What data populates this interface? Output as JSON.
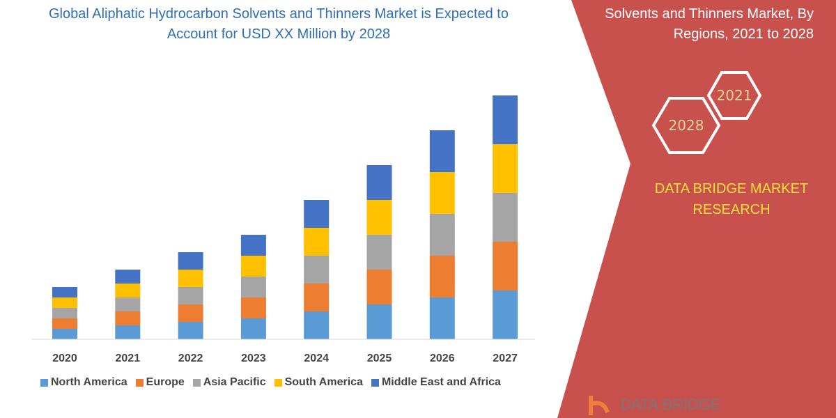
{
  "chart_data": {
    "type": "bar",
    "stacked": true,
    "title": "Global Aliphatic Hydrocarbon Solvents and Thinners Market is Expected to Account for USD XX Million by 2028",
    "categories": [
      "2020",
      "2021",
      "2022",
      "2023",
      "2024",
      "2025",
      "2026",
      "2027"
    ],
    "series": [
      {
        "name": "North America",
        "color": "#5b9bd5",
        "values": [
          15,
          20,
          25,
          30,
          40,
          50,
          60,
          70
        ]
      },
      {
        "name": "Europe",
        "color": "#ed7d31",
        "values": [
          15,
          20,
          25,
          30,
          40,
          50,
          60,
          70
        ]
      },
      {
        "name": "Asia Pacific",
        "color": "#a5a5a5",
        "values": [
          15,
          20,
          25,
          30,
          40,
          50,
          60,
          70
        ]
      },
      {
        "name": "South America",
        "color": "#ffc000",
        "values": [
          15,
          20,
          25,
          30,
          40,
          50,
          60,
          70
        ]
      },
      {
        "name": "Middle East and Africa",
        "color": "#4472c4",
        "values": [
          15,
          20,
          25,
          30,
          40,
          50,
          60,
          70
        ]
      }
    ],
    "xlabel": "",
    "ylabel": "",
    "ylim": [
      0,
      360
    ],
    "y_axis_shown": false,
    "grid": false,
    "legend_position": "bottom"
  },
  "panel": {
    "title": "Solvents and Thinners Market, By Regions, 2021 to 2028",
    "hex_start": "2021",
    "hex_end": "2028",
    "brand": "DATA BRIDGE MARKET RESEARCH",
    "logo": "DATA BRIDGE",
    "panel_color": "#c9514d",
    "brand_color": "#f5e13a"
  }
}
